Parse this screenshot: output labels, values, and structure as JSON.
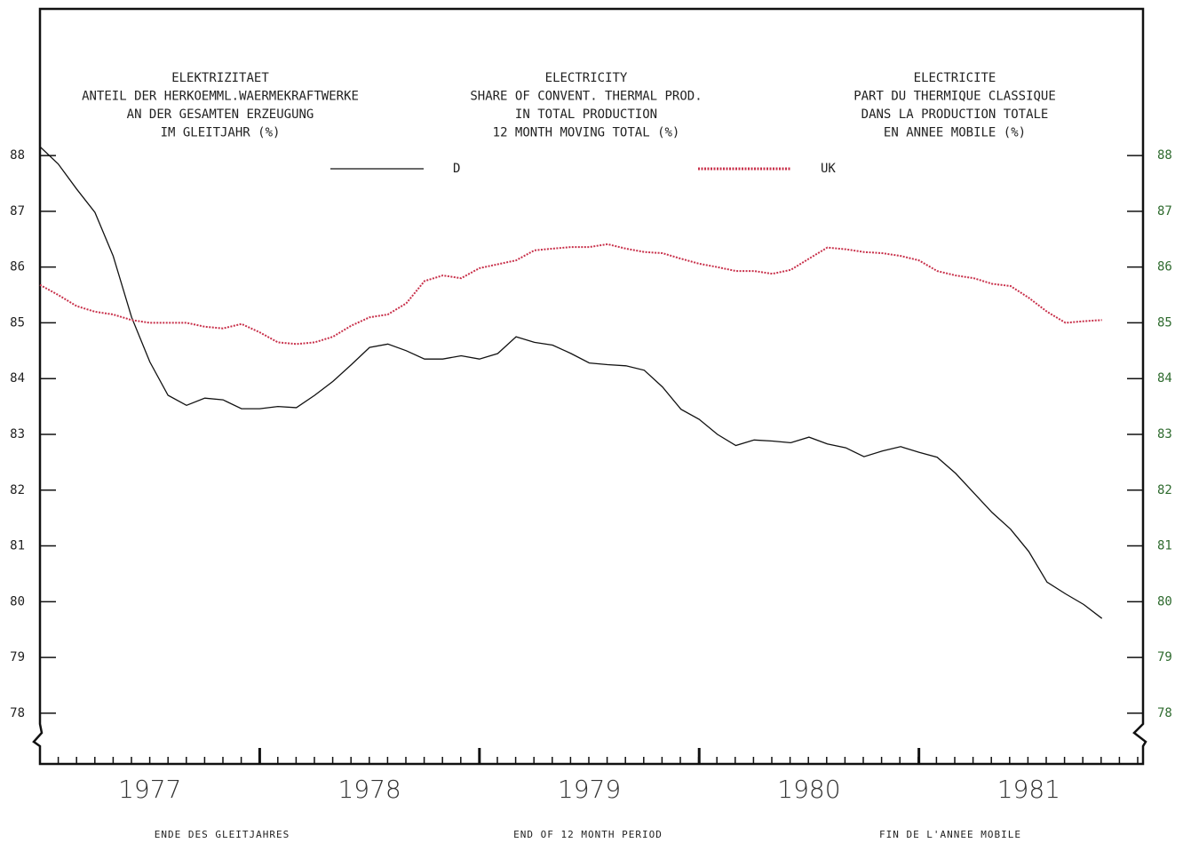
{
  "chart_data": {
    "type": "line",
    "titles": [
      [
        "ELEKTRIZITAET",
        "ANTEIL DER HERKOEMML.WAERMEKRAFTWERKE",
        "AN DER GESAMTEN ERZEUGUNG",
        "IM GLEITJAHR (%)"
      ],
      [
        "ELECTRICITY",
        "SHARE OF CONVENT. THERMAL PROD.",
        "IN TOTAL PRODUCTION",
        "12 MONTH MOVING TOTAL (%)"
      ],
      [
        "ELECTRICITE",
        "PART DU THERMIQUE CLASSIQUE",
        "DANS LA PRODUCTION TOTALE",
        "EN ANNEE MOBILE (%)"
      ]
    ],
    "x_labels": [
      "ENDE DES GLEITJAHRES",
      "END OF 12 MONTH PERIOD",
      "FIN DE L'ANNEE MOBILE"
    ],
    "x": [
      1977.0,
      1977.083,
      1977.167,
      1977.25,
      1977.333,
      1977.417,
      1977.5,
      1977.583,
      1977.667,
      1977.75,
      1977.833,
      1977.917,
      1978.0,
      1978.083,
      1978.167,
      1978.25,
      1978.333,
      1978.417,
      1978.5,
      1978.583,
      1978.667,
      1978.75,
      1978.833,
      1978.917,
      1979.0,
      1979.083,
      1979.167,
      1979.25,
      1979.333,
      1979.417,
      1979.5,
      1979.583,
      1979.667,
      1979.75,
      1979.833,
      1979.917,
      1980.0,
      1980.083,
      1980.167,
      1980.25,
      1980.333,
      1980.417,
      1980.5,
      1980.583,
      1980.667,
      1980.75,
      1980.833,
      1980.917,
      1981.0,
      1981.083,
      1981.167,
      1981.25,
      1981.333,
      1981.417,
      1981.5,
      1981.583,
      1981.667,
      1981.75,
      1981.833
    ],
    "series": [
      {
        "name": "D",
        "color": "#111111",
        "values": [
          88.16,
          87.85,
          87.4,
          86.98,
          86.2,
          85.1,
          84.3,
          83.7,
          83.52,
          83.65,
          83.62,
          83.46,
          83.46,
          83.5,
          83.48,
          83.7,
          83.95,
          84.25,
          84.56,
          84.62,
          84.5,
          84.35,
          84.35,
          84.41,
          84.35,
          84.45,
          84.75,
          84.65,
          84.6,
          84.45,
          84.28,
          84.25,
          84.23,
          84.15,
          83.85,
          83.45,
          83.27,
          83.0,
          82.8,
          82.9,
          82.88,
          82.85,
          82.95,
          82.83,
          82.76,
          82.6,
          82.7,
          82.78,
          82.68,
          82.59,
          82.3,
          81.95,
          81.6,
          81.3,
          80.9,
          80.35,
          80.14,
          79.95,
          79.7
        ]
      },
      {
        "name": "UK",
        "color": "#c8304a",
        "values": [
          85.68,
          85.5,
          85.3,
          85.2,
          85.15,
          85.05,
          85.0,
          85.0,
          85.0,
          84.93,
          84.9,
          84.98,
          84.83,
          84.65,
          84.62,
          84.65,
          84.75,
          84.95,
          85.1,
          85.15,
          85.35,
          85.75,
          85.85,
          85.8,
          85.98,
          86.05,
          86.12,
          86.3,
          86.33,
          86.36,
          86.36,
          86.41,
          86.33,
          86.27,
          86.25,
          86.15,
          86.06,
          86.0,
          85.93,
          85.93,
          85.88,
          85.95,
          86.15,
          86.35,
          86.32,
          86.27,
          86.25,
          86.2,
          86.12,
          85.93,
          85.85,
          85.8,
          85.7,
          85.66,
          85.45,
          85.2,
          85.0,
          85.03,
          85.05
        ]
      }
    ],
    "xlim": [
      1977,
      1982.02
    ],
    "xticks": [
      {
        "value": 1977.5,
        "label": "1977"
      },
      {
        "value": 1978.5,
        "label": "1978"
      },
      {
        "value": 1979.5,
        "label": "1979"
      },
      {
        "value": 1980.5,
        "label": "1980"
      },
      {
        "value": 1981.5,
        "label": "1981"
      }
    ],
    "ylim": [
      77.09,
      90.63
    ],
    "yticks": [
      78,
      79,
      80,
      81,
      82,
      83,
      84,
      85,
      86,
      87,
      88
    ]
  }
}
